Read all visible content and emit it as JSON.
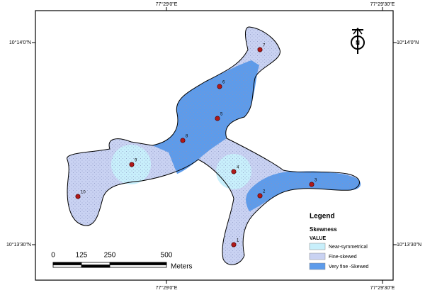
{
  "grid_labels": {
    "top": [
      "77°29'0\"E",
      "77°29'30\"E"
    ],
    "bottom": [
      "77°29'0\"E",
      "77°29'30\"E"
    ],
    "left": [
      "10°14'0\"N",
      "10°13'30\"N"
    ],
    "right": [
      "10°14'0\"N",
      "10°13'30\"N"
    ]
  },
  "points": [
    "7",
    "6",
    "5",
    "8",
    "9",
    "4",
    "3",
    "2",
    "10",
    "1"
  ],
  "legend": {
    "title": "Legend",
    "subtitle": "Skewness",
    "field": "VALUE",
    "items": [
      "Near-symmetrical",
      "Fine-skewed",
      "Very fine -Skewed"
    ]
  },
  "scale_bar": {
    "ticks": [
      0,
      125,
      250,
      500
    ],
    "unit": "Meters"
  }
}
